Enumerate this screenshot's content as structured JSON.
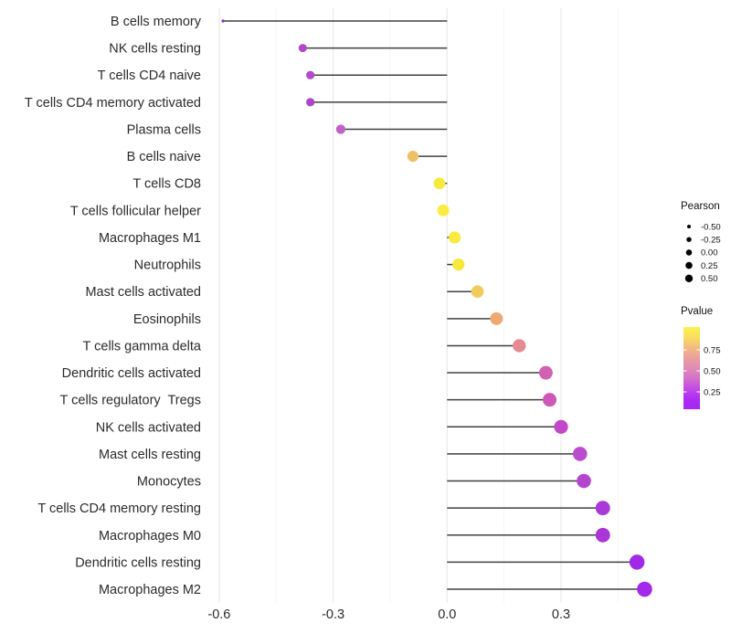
{
  "chart_data": {
    "type": "scatter",
    "variant": "lollipop",
    "orientation": "horizontal",
    "title": "",
    "xlabel": "",
    "ylabel": "",
    "xlim": [
      -0.72,
      0.58
    ],
    "baseline": 0,
    "grid": true,
    "background": "#ffffff",
    "x_major_ticks": [
      -0.6,
      -0.3,
      0.0,
      0.3
    ],
    "x_minor_ticks": [
      -0.45,
      -0.15,
      0.15,
      0.45
    ],
    "x_tick_labels": [
      "-0.6",
      "-0.3",
      "0.0",
      "0.3"
    ],
    "points": [
      {
        "label": "B cells memory",
        "pearson": -0.59,
        "color": "#8C2BB8"
      },
      {
        "label": "NK cells resting",
        "pearson": -0.38,
        "color": "#B048C6"
      },
      {
        "label": "T cells CD4 naive",
        "pearson": -0.36,
        "color": "#B14BC8"
      },
      {
        "label": "T cells CD4 memory activated",
        "pearson": -0.36,
        "color": "#AF46C6"
      },
      {
        "label": "Plasma cells",
        "pearson": -0.28,
        "color": "#C262C4"
      },
      {
        "label": "B cells naive",
        "pearson": -0.09,
        "color": "#EFC167"
      },
      {
        "label": "T cells CD8",
        "pearson": -0.02,
        "color": "#F7E83C"
      },
      {
        "label": "T cells follicular helper",
        "pearson": -0.01,
        "color": "#F9ED40"
      },
      {
        "label": "Macrophages M1",
        "pearson": 0.02,
        "color": "#F8EA3E"
      },
      {
        "label": "Neutrophils",
        "pearson": 0.03,
        "color": "#F7E83C"
      },
      {
        "label": "Mast cells activated",
        "pearson": 0.08,
        "color": "#F1CC5D"
      },
      {
        "label": "Eosinophils",
        "pearson": 0.13,
        "color": "#EEA973"
      },
      {
        "label": "T cells gamma delta",
        "pearson": 0.19,
        "color": "#E68A92"
      },
      {
        "label": "Dendritic cells activated",
        "pearson": 0.26,
        "color": "#D162B2"
      },
      {
        "label": "T cells regulatory  Tregs",
        "pearson": 0.27,
        "color": "#CD58B8"
      },
      {
        "label": "NK cells activated",
        "pearson": 0.3,
        "color": "#C348C8"
      },
      {
        "label": "Mast cells resting",
        "pearson": 0.35,
        "color": "#BA4CCE"
      },
      {
        "label": "Monocytes",
        "pearson": 0.36,
        "color": "#B445CF"
      },
      {
        "label": "T cells CD4 memory resting",
        "pearson": 0.41,
        "color": "#AB38D8"
      },
      {
        "label": "Macrophages M0",
        "pearson": 0.41,
        "color": "#AA36D6"
      },
      {
        "label": "Dendritic cells resting",
        "pearson": 0.5,
        "color": "#A02BE6"
      },
      {
        "label": "Macrophages M2",
        "pearson": 0.52,
        "color": "#A428EA"
      }
    ],
    "legend": {
      "size": {
        "title": "Pearson",
        "entries": [
          {
            "label": "-0.50",
            "value": -0.5
          },
          {
            "label": "-0.25",
            "value": -0.25
          },
          {
            "label": "0.00",
            "value": 0.0
          },
          {
            "label": "0.25",
            "value": 0.25
          },
          {
            "label": "0.50",
            "value": 0.5
          }
        ],
        "dot_color": "#000000"
      },
      "color": {
        "title": "Pvalue",
        "tick_labels": [
          "0.75",
          "0.50",
          "0.25"
        ],
        "gradient_top_to_bottom": [
          "#FAF24C",
          "#F8DE60",
          "#F2BC80",
          "#EA9E9E",
          "#E18BB4",
          "#D470CC",
          "#C24AE6",
          "#AD2CF2",
          "#A727F4"
        ],
        "legend_position": "right"
      }
    }
  },
  "colors": {
    "stem": "#404040",
    "axis_text": "#2B2B2B",
    "gridline_major": "#E9E9E9",
    "gridline_minor": "#F4F4F4",
    "legend_text": "#111111"
  }
}
